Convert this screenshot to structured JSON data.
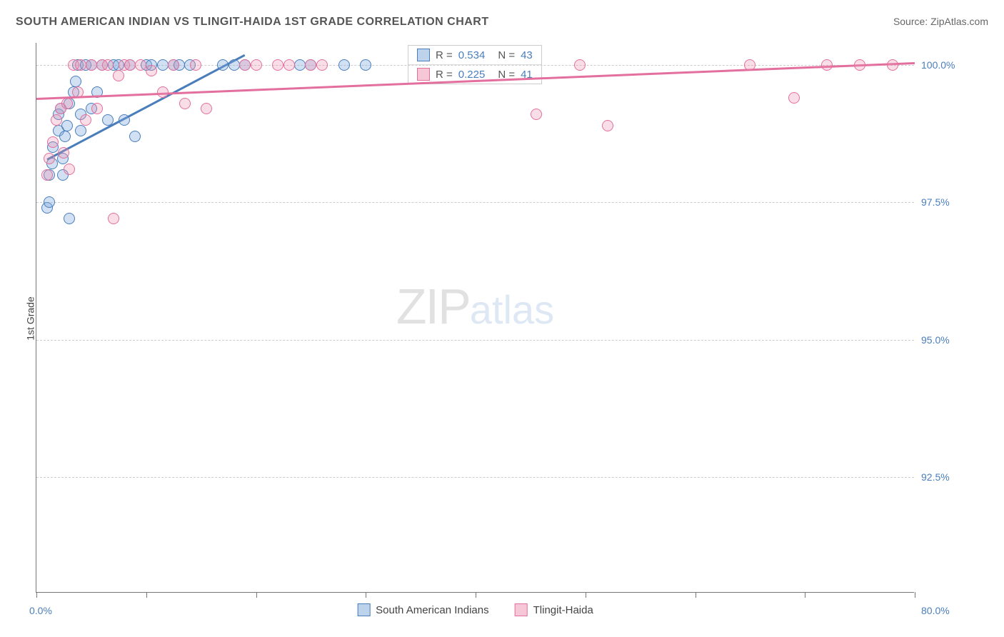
{
  "title": "SOUTH AMERICAN INDIAN VS TLINGIT-HAIDA 1ST GRADE CORRELATION CHART",
  "source": "Source: ZipAtlas.com",
  "ylabel": "1st Grade",
  "watermark": {
    "left": "ZIP",
    "right": "atlas"
  },
  "chart": {
    "type": "scatter",
    "background_color": "#ffffff",
    "grid_color": "#cccccc",
    "axis_color": "#777777",
    "marker_size": 16,
    "ylim": [
      90.4,
      100.4
    ],
    "xlim": [
      0,
      80
    ],
    "yticks": [
      {
        "value": 92.5,
        "label": "92.5%"
      },
      {
        "value": 95.0,
        "label": "95.0%"
      },
      {
        "value": 97.5,
        "label": "97.5%"
      },
      {
        "value": 100.0,
        "label": "100.0%"
      }
    ],
    "xticks": [
      0,
      10,
      20,
      30,
      40,
      50,
      60,
      70,
      80
    ],
    "xmin_label": "0.0%",
    "xmax_label": "80.0%",
    "series": [
      {
        "id": "s1",
        "name": "South American Indians",
        "fill_color": "rgba(123,167,217,0.35)",
        "stroke_color": "#4a7ebb",
        "R": "0.534",
        "N": "43",
        "points": [
          [
            1.0,
            97.4
          ],
          [
            1.2,
            97.5
          ],
          [
            1.2,
            98.0
          ],
          [
            1.4,
            98.2
          ],
          [
            1.5,
            98.5
          ],
          [
            2.0,
            98.8
          ],
          [
            2.0,
            99.1
          ],
          [
            2.2,
            99.2
          ],
          [
            2.4,
            98.0
          ],
          [
            2.4,
            98.3
          ],
          [
            2.6,
            98.7
          ],
          [
            2.8,
            98.9
          ],
          [
            3.0,
            97.2
          ],
          [
            3.0,
            99.3
          ],
          [
            3.4,
            99.5
          ],
          [
            3.6,
            99.7
          ],
          [
            3.8,
            100.0
          ],
          [
            4.0,
            98.8
          ],
          [
            4.0,
            99.1
          ],
          [
            4.5,
            100.0
          ],
          [
            5.0,
            99.2
          ],
          [
            5.0,
            100.0
          ],
          [
            5.5,
            99.5
          ],
          [
            6.0,
            100.0
          ],
          [
            6.5,
            99.0
          ],
          [
            7.0,
            100.0
          ],
          [
            7.5,
            100.0
          ],
          [
            8.0,
            99.0
          ],
          [
            8.5,
            100.0
          ],
          [
            9.0,
            98.7
          ],
          [
            10.0,
            100.0
          ],
          [
            10.5,
            100.0
          ],
          [
            11.5,
            100.0
          ],
          [
            12.5,
            100.0
          ],
          [
            13.0,
            100.0
          ],
          [
            14.0,
            100.0
          ],
          [
            17.0,
            100.0
          ],
          [
            18.0,
            100.0
          ],
          [
            19.0,
            100.0
          ],
          [
            24.0,
            100.0
          ],
          [
            25.0,
            100.0
          ],
          [
            28.0,
            100.0
          ],
          [
            30.0,
            100.0
          ]
        ],
        "trend": {
          "x1": 1,
          "y1": 98.3,
          "x2": 19,
          "y2": 100.2
        }
      },
      {
        "id": "s2",
        "name": "Tlingit-Haida",
        "fill_color": "rgba(238,145,175,0.30)",
        "stroke_color": "#e36f9e",
        "R": "0.225",
        "N": "41",
        "points": [
          [
            1.0,
            98.0
          ],
          [
            1.2,
            98.3
          ],
          [
            1.5,
            98.6
          ],
          [
            1.8,
            99.0
          ],
          [
            2.2,
            99.2
          ],
          [
            2.5,
            98.4
          ],
          [
            2.8,
            99.3
          ],
          [
            3.0,
            98.1
          ],
          [
            3.4,
            100.0
          ],
          [
            3.8,
            99.5
          ],
          [
            4.0,
            100.0
          ],
          [
            4.5,
            99.0
          ],
          [
            5.0,
            100.0
          ],
          [
            5.5,
            99.2
          ],
          [
            6.0,
            100.0
          ],
          [
            6.5,
            100.0
          ],
          [
            7.0,
            97.2
          ],
          [
            7.5,
            99.8
          ],
          [
            8.0,
            100.0
          ],
          [
            8.5,
            100.0
          ],
          [
            9.5,
            100.0
          ],
          [
            10.5,
            99.9
          ],
          [
            11.5,
            99.5
          ],
          [
            12.5,
            100.0
          ],
          [
            13.5,
            99.3
          ],
          [
            14.5,
            100.0
          ],
          [
            15.5,
            99.2
          ],
          [
            19.0,
            100.0
          ],
          [
            20.0,
            100.0
          ],
          [
            22.0,
            100.0
          ],
          [
            23.0,
            100.0
          ],
          [
            25.0,
            100.0
          ],
          [
            26.0,
            100.0
          ],
          [
            45.5,
            99.1
          ],
          [
            49.5,
            100.0
          ],
          [
            52.0,
            98.9
          ],
          [
            65.0,
            100.0
          ],
          [
            69.0,
            99.4
          ],
          [
            72.0,
            100.0
          ],
          [
            75.0,
            100.0
          ],
          [
            78.0,
            100.0
          ]
        ],
        "trend": {
          "x1": 0,
          "y1": 99.4,
          "x2": 80,
          "y2": 100.05
        }
      }
    ]
  },
  "legend_labels": {
    "R": "R =",
    "N": "N ="
  }
}
